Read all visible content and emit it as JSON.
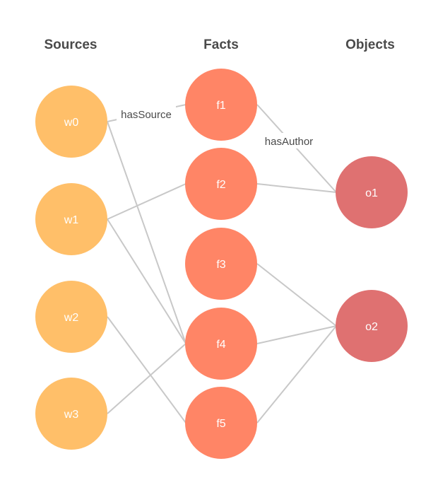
{
  "columns": {
    "sources": "Sources",
    "facts": "Facts",
    "objects": "Objects"
  },
  "nodes": {
    "w0": "w0",
    "w1": "w1",
    "w2": "w2",
    "w3": "w3",
    "f1": "f1",
    "f2": "f2",
    "f3": "f3",
    "f4": "f4",
    "f5": "f5",
    "o1": "o1",
    "o2": "o2"
  },
  "edge_labels": {
    "has_source": "hasSource",
    "has_author": "hasAuthor"
  },
  "colors": {
    "source": "#FFBF69",
    "fact": "#FF8566",
    "object": "#DF7171",
    "edge": "#C8C8C8"
  },
  "edges": [
    [
      "w0",
      "f1"
    ],
    [
      "w0",
      "f4"
    ],
    [
      "w1",
      "f2"
    ],
    [
      "w1",
      "f4"
    ],
    [
      "w2",
      "f5"
    ],
    [
      "w3",
      "f4"
    ],
    [
      "f1",
      "o1"
    ],
    [
      "f2",
      "o1"
    ],
    [
      "f3",
      "o2"
    ],
    [
      "f4",
      "o2"
    ],
    [
      "f5",
      "o2"
    ]
  ]
}
